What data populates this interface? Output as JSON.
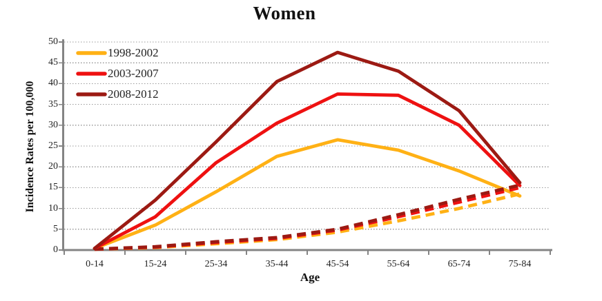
{
  "chart_data": {
    "type": "line",
    "title": "Women",
    "xlabel": "Age",
    "ylabel": "Incidence Rates per 100,000",
    "categories": [
      "0-14",
      "15-24",
      "25-34",
      "35-44",
      "45-54",
      "55-64",
      "65-74",
      "75-84"
    ],
    "ylim": [
      0,
      50
    ],
    "ytick_step": 5,
    "ytick_labels": [
      "0",
      "5",
      "10",
      "15",
      "20",
      "25",
      "30",
      "35",
      "40",
      "45",
      "50"
    ],
    "grid": "horizontal-dotted",
    "legend_position": "top-left-inside",
    "legend_entries": [
      {
        "label": "1998-2002",
        "color": "#FFB115"
      },
      {
        "label": "2003-2007",
        "color": "#EE1111"
      },
      {
        "label": "2008-2012",
        "color": "#9C1A13"
      }
    ],
    "series": [
      {
        "name": "1998-2002",
        "style": "solid",
        "color": "#FFB115",
        "values": [
          0.4,
          6,
          14,
          22.5,
          26.5,
          24,
          19,
          13
        ]
      },
      {
        "name": "1998-2002 dashed",
        "style": "dashed",
        "color": "#FFB115",
        "values": [
          0.2,
          0.6,
          1.5,
          2.5,
          4.3,
          7,
          10,
          13.5
        ]
      },
      {
        "name": "2003-2007 dashed",
        "style": "dashed",
        "color": "#EE1111",
        "values": [
          0.2,
          0.7,
          1.8,
          2.8,
          4.8,
          8,
          11.5,
          15
        ]
      },
      {
        "name": "2008-2012 dashed",
        "style": "dashed",
        "color": "#9C1A13",
        "values": [
          0.2,
          0.8,
          2.0,
          3.0,
          5.0,
          8.5,
          12.2,
          15.6
        ]
      },
      {
        "name": "2003-2007",
        "style": "solid",
        "color": "#EE1111",
        "values": [
          0.4,
          8,
          21,
          30.5,
          37.5,
          37.2,
          30,
          15.5
        ]
      },
      {
        "name": "2008-2012",
        "style": "solid",
        "color": "#9C1A13",
        "values": [
          0.4,
          12,
          26,
          40.5,
          47.5,
          43,
          33.5,
          16.2
        ]
      }
    ]
  },
  "colors": {
    "orange": "#FFB115",
    "red": "#EE1111",
    "dark_red": "#9C1A13",
    "grid": "#999999",
    "axis": "#848484",
    "text": "#1f1f1f"
  }
}
